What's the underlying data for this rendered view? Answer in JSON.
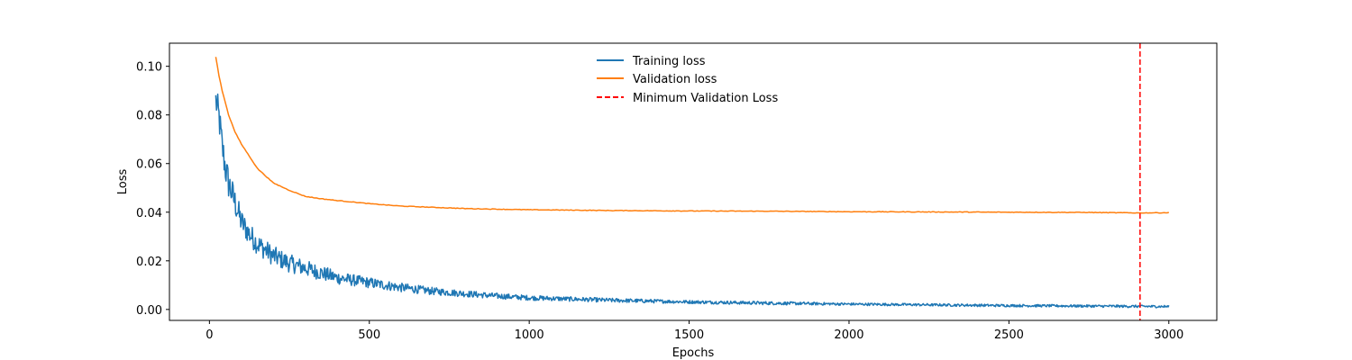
{
  "chart_data": {
    "type": "line",
    "title": "",
    "xlabel": "Epochs",
    "ylabel": "Loss",
    "xlim": [
      -125,
      3150
    ],
    "ylim": [
      -0.0045,
      0.1095
    ],
    "xticks": [
      0,
      500,
      1000,
      1500,
      2000,
      2500,
      3000
    ],
    "xtick_labels": [
      "0",
      "500",
      "1000",
      "1500",
      "2000",
      "2500",
      "3000"
    ],
    "yticks": [
      0.0,
      0.02,
      0.04,
      0.06,
      0.08,
      0.1
    ],
    "ytick_labels": [
      "0.00",
      "0.02",
      "0.04",
      "0.06",
      "0.08",
      "0.10"
    ],
    "grid": false,
    "legend_position": "top-center",
    "series": [
      {
        "name": "Training loss",
        "color": "#1f77b4",
        "x": [
          20,
          30,
          40,
          50,
          60,
          80,
          100,
          125,
          150,
          200,
          250,
          300,
          350,
          400,
          450,
          500,
          600,
          700,
          800,
          900,
          1000,
          1250,
          1500,
          1750,
          2000,
          2250,
          2500,
          2750,
          3000
        ],
        "y": [
          0.086,
          0.079,
          0.067,
          0.058,
          0.052,
          0.044,
          0.036,
          0.031,
          0.027,
          0.022,
          0.019,
          0.017,
          0.015,
          0.013,
          0.012,
          0.011,
          0.009,
          0.0075,
          0.0065,
          0.0055,
          0.0048,
          0.0038,
          0.0031,
          0.0026,
          0.0022,
          0.0019,
          0.0016,
          0.0014,
          0.0012
        ],
        "noise": [
          0.004,
          0.004,
          0.004,
          0.004,
          0.004,
          0.0035,
          0.003,
          0.0028,
          0.0026,
          0.0024,
          0.0022,
          0.002,
          0.0018,
          0.0016,
          0.0014,
          0.0013,
          0.0011,
          0.0009,
          0.0008,
          0.0007,
          0.0006,
          0.0005,
          0.0004,
          0.0004,
          0.0003,
          0.0003,
          0.0003,
          0.0003,
          0.0003
        ]
      },
      {
        "name": "Validation loss",
        "color": "#ff7f0e",
        "x": [
          20,
          30,
          40,
          50,
          60,
          80,
          100,
          125,
          150,
          200,
          250,
          300,
          350,
          400,
          500,
          600,
          700,
          800,
          1000,
          1250,
          1500,
          1750,
          2000,
          2250,
          2500,
          2750,
          2910,
          3000
        ],
        "y": [
          0.104,
          0.096,
          0.09,
          0.085,
          0.08,
          0.073,
          0.068,
          0.063,
          0.058,
          0.052,
          0.049,
          0.0465,
          0.0455,
          0.0448,
          0.0435,
          0.0425,
          0.042,
          0.0415,
          0.041,
          0.0407,
          0.0405,
          0.0404,
          0.0402,
          0.0401,
          0.04,
          0.0399,
          0.0397,
          0.0398
        ]
      }
    ],
    "reference_lines": [
      {
        "name": "Minimum Validation Loss",
        "orientation": "vertical",
        "x": 2910,
        "color": "#ff0000",
        "style": "dashed"
      }
    ]
  }
}
